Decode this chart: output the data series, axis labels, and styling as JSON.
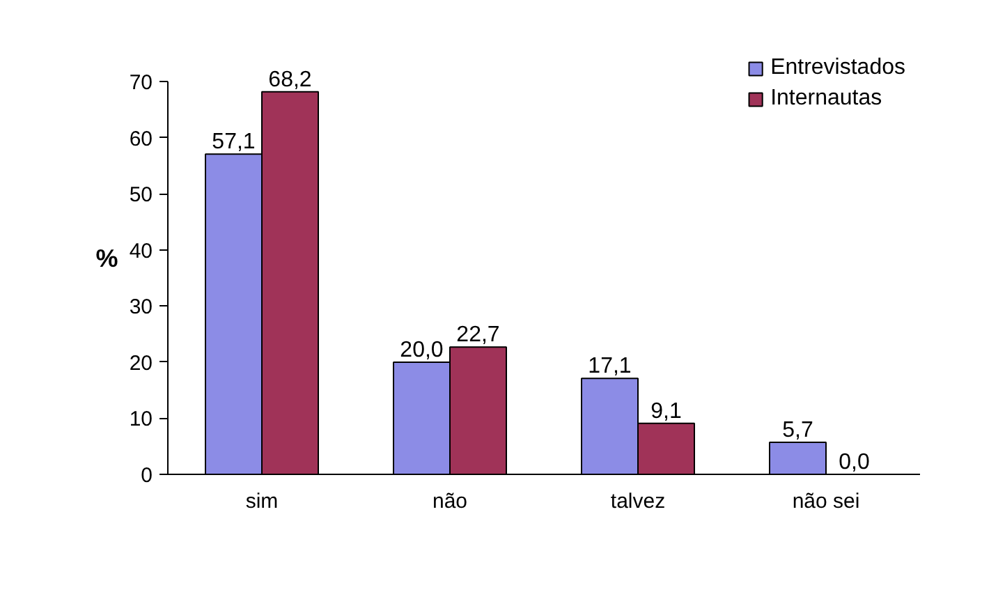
{
  "chart_data": {
    "type": "bar",
    "ylabel": "%",
    "categories": [
      "sim",
      "não",
      "talvez",
      "não sei"
    ],
    "series": [
      {
        "name": "Entrevistados",
        "color": "#8c8ce6",
        "values": [
          57.1,
          20.0,
          17.1,
          5.7
        ],
        "value_labels": [
          "57,1",
          "20,0",
          "17,1",
          "5,7"
        ]
      },
      {
        "name": "Internautas",
        "color": "#a03358",
        "values": [
          68.2,
          22.7,
          9.1,
          0.0
        ],
        "value_labels": [
          "68,2",
          "22,7",
          "9,1",
          "0,0"
        ]
      }
    ],
    "ylim": [
      0,
      70
    ],
    "yticks": [
      0,
      10,
      20,
      30,
      40,
      50,
      60,
      70
    ],
    "grid": false,
    "legend": "top right"
  }
}
